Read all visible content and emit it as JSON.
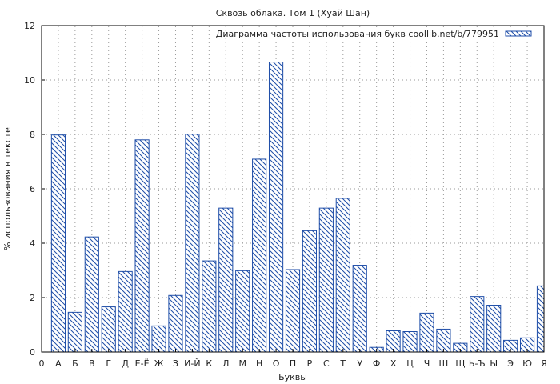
{
  "chart_data": {
    "type": "bar",
    "title": "Сквозь облака. Том 1 (Хуай Шан)",
    "xlabel": "Буквы",
    "ylabel": "% использования в тексте",
    "legend": "Диаграмма частоты использования букв coollib.net/b/779951",
    "legend_position": "top-right",
    "grid": true,
    "ylim": [
      0,
      12
    ],
    "yticks": [
      "0",
      "2",
      "4",
      "6",
      "8",
      "10",
      "12"
    ],
    "categories": [
      "0",
      "А",
      "Б",
      "В",
      "Г",
      "Д",
      "Е-Ё",
      "Ж",
      "З",
      "И-Й",
      "К",
      "Л",
      "М",
      "Н",
      "О",
      "П",
      "Р",
      "С",
      "Т",
      "У",
      "Ф",
      "Х",
      "Ц",
      "Ч",
      "Ш",
      "Щ",
      "Ь-Ъ",
      "Ы",
      "Э",
      "Ю",
      "Я"
    ],
    "values": [
      0,
      7.98,
      1.46,
      4.23,
      1.66,
      2.96,
      7.8,
      0.96,
      2.08,
      8.01,
      3.35,
      5.29,
      2.99,
      7.09,
      10.66,
      3.03,
      4.46,
      5.29,
      5.65,
      3.19,
      0.17,
      0.78,
      0.75,
      1.43,
      0.84,
      0.32,
      2.04,
      1.72,
      0.43,
      0.52,
      2.43
    ],
    "colors": {
      "bar_stroke": "#1f4ea8",
      "hatch": "#1f4ea8",
      "grid": "#9a9a9a"
    }
  }
}
